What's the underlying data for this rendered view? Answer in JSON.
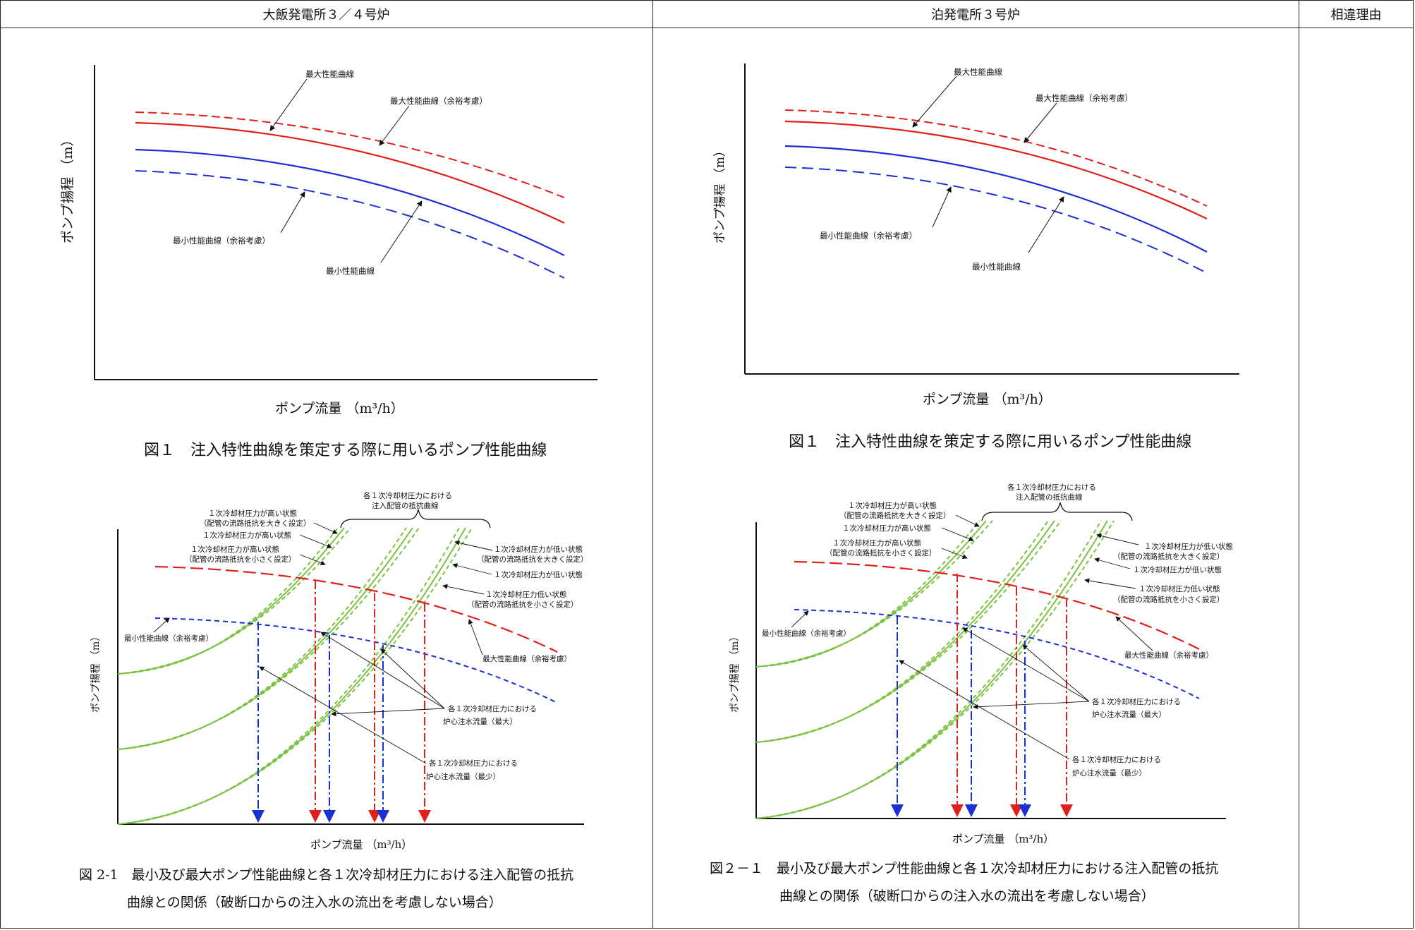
{
  "header": {
    "left": "大飯発電所３／４号炉",
    "mid": "泊発電所３号炉",
    "right": "相違理由"
  },
  "left": {
    "fig1": {
      "ylabel": "ポンプ揚程 （m）",
      "xlabel": "ポンプ流量 （m³/h）",
      "caption": "図１　注入特性曲線を策定する際に用いるポンプ性能曲線",
      "labels": {
        "max": "最大性能曲線",
        "max_margin": "最大性能曲線（余裕考慮）",
        "min_margin": "最小性能曲線（余裕考慮）",
        "min": "最小性能曲線"
      }
    },
    "fig2": {
      "ylabel": "ポンプ揚程 （m）",
      "xlabel": "ポンプ流量 （m³/h）",
      "caption_line1": "図 2-1　最小及び最大ポンプ性能曲線と各１次冷却材圧力における注入配管の抵抗",
      "caption_line2": "曲線との関係（破断口からの注入水の流出を考慮しない場合）",
      "labels": {
        "brace": "各１次冷却材圧力における",
        "brace2": "注入配管の抵抗曲線",
        "hp_large_1": "１次冷却材圧力が高い状態",
        "hp_large_2": "（配管の流路抵抗を大きく設定）",
        "hp": "１次冷却材圧力が高い状態",
        "hp_small_1": "１次冷却材圧力が高い状態",
        "hp_small_2": "（配管の流路抵抗を小さく設定）",
        "lp_large_1": "１次冷却材圧力が低い状態",
        "lp_large_2": "（配管の流路抵抗を大きく設定）",
        "lp": "１次冷却材圧力が低い状態",
        "lp_small_1": "１次冷却材圧力低い状態",
        "lp_small_2": "（配管の流路抵抗を小さく設定）",
        "min_margin": "最小性能曲線（余裕考慮）",
        "max_margin": "最大性能曲線（余裕考慮）",
        "flow_max_1": "各１次冷却材圧力における",
        "flow_max_2": "炉心注水流量（最大）",
        "flow_min_1": "各１次冷却材圧力における",
        "flow_min_2": "炉心注水流量（最少）"
      }
    }
  },
  "right": {
    "fig1": {
      "ylabel": "ポンプ揚程 （m）",
      "xlabel": "ポンプ流量 （m³/h）",
      "caption": "図１　注入特性曲線を策定する際に用いるポンプ性能曲線",
      "labels": {
        "max": "最大性能曲線",
        "max_margin": "最大性能曲線（余裕考慮）",
        "min_margin": "最小性能曲線（余裕考慮）",
        "min": "最小性能曲線"
      }
    },
    "fig2": {
      "ylabel": "ポンプ揚程 （m）",
      "xlabel": "ポンプ流量 （m³/h）",
      "caption_line1": "図２－１　最小及び最大ポンプ性能曲線と各１次冷却材圧力における注入配管の抵抗",
      "caption_line2": "曲線との関係（破断口からの注入水の流出を考慮しない場合）",
      "labels": {
        "brace": "各１次冷却材圧力における",
        "brace2": "注入配管の抵抗曲線",
        "hp_large_1": "１次冷却材圧力が高い状態",
        "hp_large_2": "（配管の流路抵抗を大きく設定）",
        "hp": "１次冷却材圧力が高い状態",
        "hp_small_1": "１次冷却材圧力が高い状態",
        "hp_small_2": "（配管の流路抵抗を小さく設定）",
        "lp_large_1": "１次冷却材圧力が低い状態",
        "lp_large_2": "（配管の流路抵抗を大きく設定）",
        "lp": "１次冷却材圧力が低い状態",
        "lp_small_1": "１次冷却材圧力低い状態",
        "lp_small_2": "（配管の流路抵抗を小さく設定）",
        "min_margin": "最小性能曲線（余裕考慮）",
        "max_margin": "最大性能曲線（余裕考慮）",
        "flow_max_1": "各１次冷却材圧力における",
        "flow_max_2": "炉心注水流量（最大）",
        "flow_min_1": "各１次冷却材圧力における",
        "flow_min_2": "炉心注水流量（最少）"
      }
    }
  },
  "colors": {
    "max_curve": "#e0201b",
    "min_curve": "#1b2fd6",
    "resistance": "#7cc242",
    "axis": "#111111"
  }
}
